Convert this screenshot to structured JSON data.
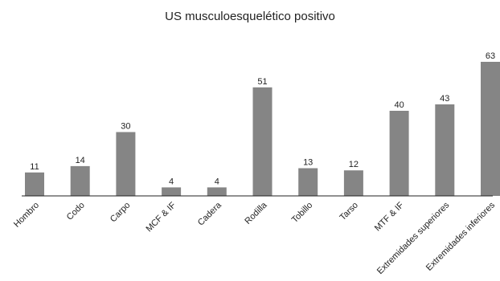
{
  "chart_data": {
    "type": "bar",
    "title": "US musculoesquelético positivo",
    "xlabel": "",
    "ylabel": "",
    "categories": [
      "Hombro",
      "Codo",
      "Carpo",
      "MCF & IF",
      "Cadera",
      "Rodilla",
      "Tobillo",
      "Tarso",
      "MTF & IF",
      "Extremidades superiores",
      "Extremidades inferiores"
    ],
    "values": [
      11,
      14,
      30,
      4,
      4,
      51,
      13,
      12,
      40,
      43,
      63
    ],
    "ylim": [
      0,
      63
    ],
    "grid": false,
    "legend": "none",
    "bar_color": "#858585",
    "axis_color": "#222222"
  }
}
